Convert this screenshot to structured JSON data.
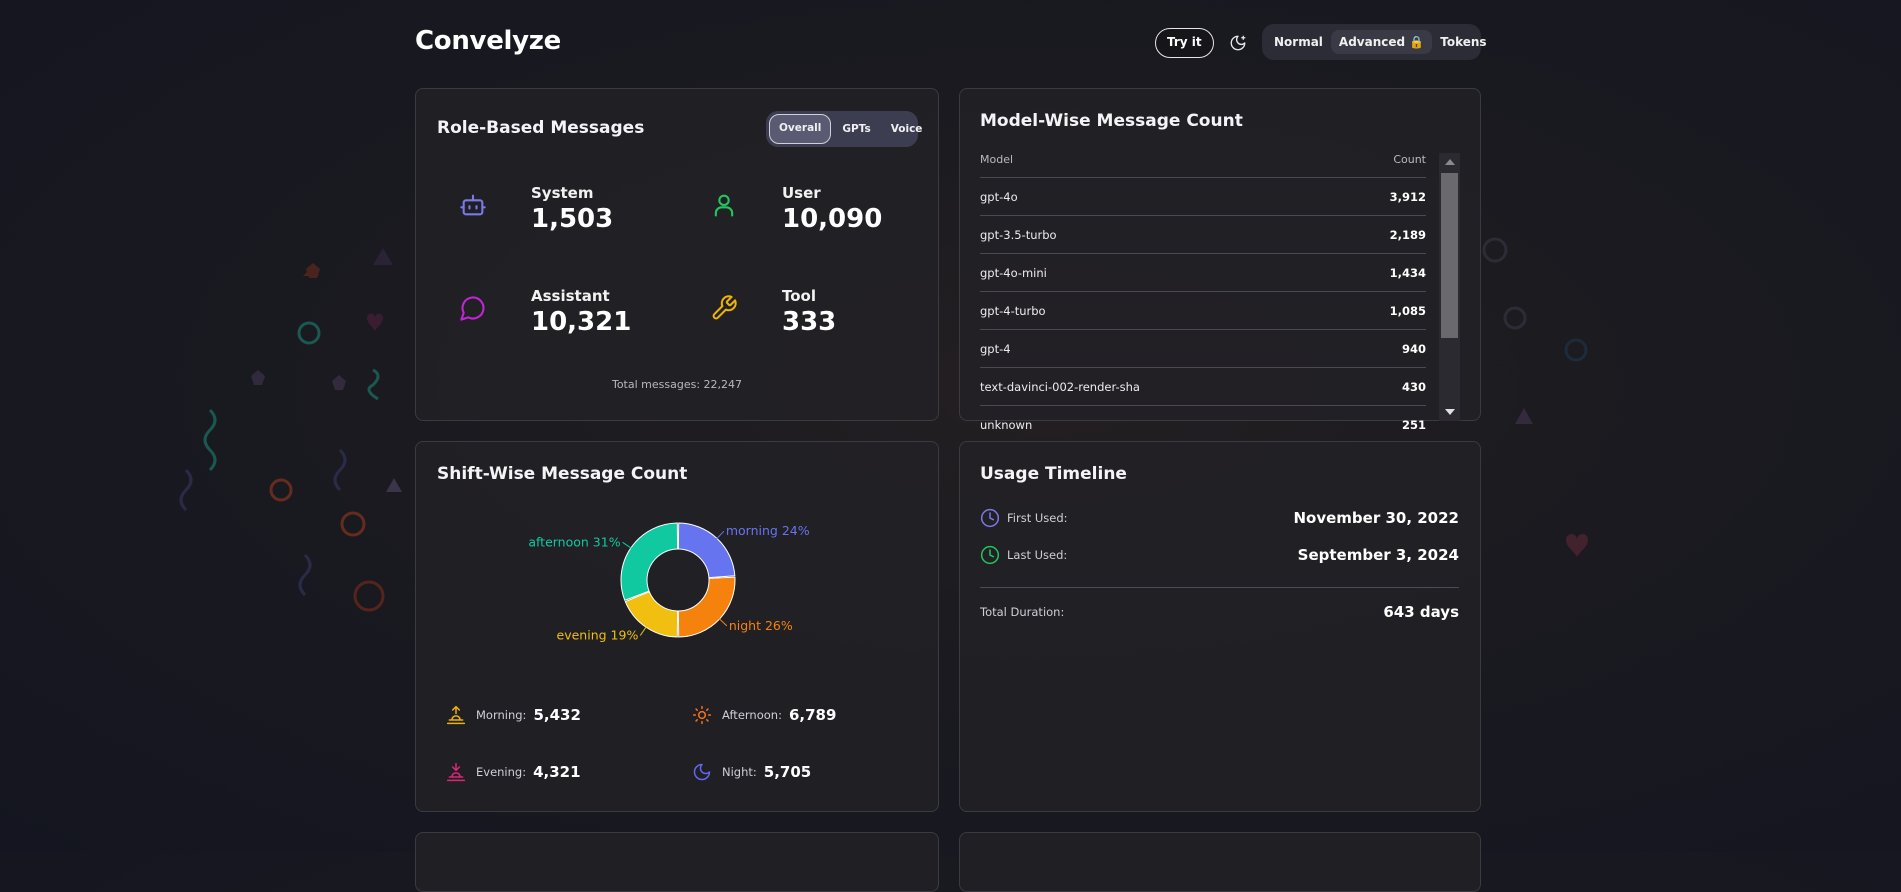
{
  "app": {
    "title": "Convelyze",
    "try_label": "Try it",
    "theme_icon": "moon-stars-icon",
    "modes": [
      "Normal",
      "Advanced 🔒",
      "Tokens"
    ],
    "active_mode": "Advanced 🔒"
  },
  "role_card": {
    "title": "Role-Based Messages",
    "tabs": [
      "Overall",
      "GPTs",
      "Voice"
    ],
    "active_tab": "Overall",
    "roles": [
      {
        "label": "System",
        "value": "1,503",
        "icon": "robot-icon",
        "color": "#7b79e8"
      },
      {
        "label": "User",
        "value": "10,090",
        "icon": "user-icon",
        "color": "#22c55e"
      },
      {
        "label": "Assistant",
        "value": "10,321",
        "icon": "chat-bubble-icon",
        "color": "#c026d3"
      },
      {
        "label": "Tool",
        "value": "333",
        "icon": "wrench-icon",
        "color": "#eab308"
      }
    ],
    "total_label": "Total messages: 22,247"
  },
  "model_card": {
    "title": "Model-Wise Message Count",
    "col_model": "Model",
    "col_count": "Count",
    "rows": [
      {
        "model": "gpt-4o",
        "count": "3,912"
      },
      {
        "model": "gpt-3.5-turbo",
        "count": "2,189"
      },
      {
        "model": "gpt-4o-mini",
        "count": "1,434"
      },
      {
        "model": "gpt-4-turbo",
        "count": "1,085"
      },
      {
        "model": "gpt-4",
        "count": "940"
      },
      {
        "model": "text-davinci-002-render-sha",
        "count": "430"
      },
      {
        "model": "unknown",
        "count": "251"
      }
    ]
  },
  "shift_card": {
    "title": "Shift-Wise Message Count",
    "items": [
      {
        "label": "Morning:",
        "value": "5,432",
        "icon": "sunrise-icon",
        "color": "#eab308"
      },
      {
        "label": "Afternoon:",
        "value": "6,789",
        "icon": "sun-icon",
        "color": "#f97316"
      },
      {
        "label": "Evening:",
        "value": "4,321",
        "icon": "sunset-icon",
        "color": "#db2777"
      },
      {
        "label": "Night:",
        "value": "5,705",
        "icon": "moon-icon",
        "color": "#6366f1"
      }
    ]
  },
  "chart_data": {
    "type": "pie",
    "donut": true,
    "slices": [
      {
        "label": "morning 24%",
        "name": "morning",
        "value": 24,
        "color": "#6674f0"
      },
      {
        "label": "night 26%",
        "name": "night",
        "value": 26,
        "color": "#f5820d"
      },
      {
        "label": "evening 19%",
        "name": "evening",
        "value": 19,
        "color": "#f0bf10"
      },
      {
        "label": "afternoon 31%",
        "name": "afternoon",
        "value": 31,
        "color": "#10c9a0"
      }
    ]
  },
  "timeline_card": {
    "title": "Usage Timeline",
    "first_label": "First Used:",
    "first_value": "November 30, 2022",
    "last_label": "Last Used:",
    "last_value": "September 3, 2024",
    "duration_label": "Total Duration:",
    "duration_value": "643 days"
  }
}
